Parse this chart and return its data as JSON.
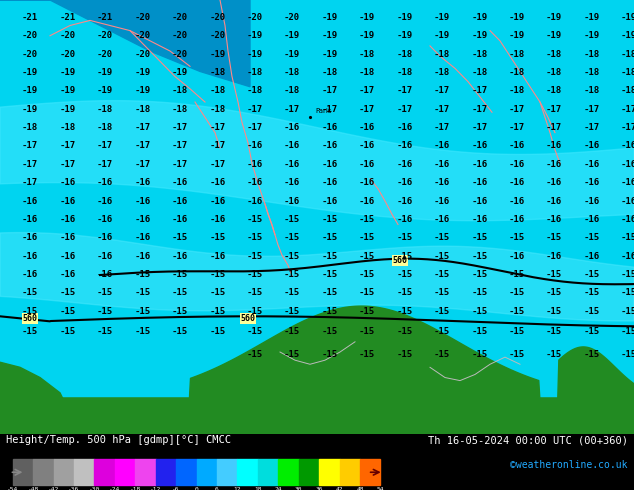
{
  "title_left": "Height/Temp. 500 hPa [gdmp][°C] CMCC",
  "title_right": "Th 16-05-2024 00:00 UTC (00+360)",
  "credit": "©weatheronline.co.uk",
  "colorbar_values": [
    -54,
    -48,
    -42,
    -36,
    -30,
    -24,
    -18,
    -12,
    -6,
    0,
    6,
    12,
    18,
    24,
    30,
    36,
    42,
    48,
    54
  ],
  "bg_color_main": "#00d4f0",
  "bg_color_dark": "#0090c8",
  "bg_color_medium": "#00bfdf",
  "land_color": "#228B22",
  "land_color2": "#1a7a1a",
  "contour_line_color": "#000000",
  "contour_label_bg": "#ffff99",
  "label_color": "#000000",
  "border_color": "#ff8888",
  "border_color2": "#cccccc",
  "fig_bg": "#000000",
  "bottom_bar_color": "#000000",
  "credit_color": "#22aaff",
  "colorbar_seg_colors": [
    "#606060",
    "#808080",
    "#a0a0a0",
    "#c0c0c0",
    "#dd00dd",
    "#ff00ff",
    "#ee44ee",
    "#2222ee",
    "#0066ff",
    "#00aaff",
    "#44ccff",
    "#00ffff",
    "#00dddd",
    "#00ee00",
    "#009900",
    "#ffff00",
    "#ffcc00",
    "#ff6600",
    "#ff0000",
    "#880000"
  ]
}
